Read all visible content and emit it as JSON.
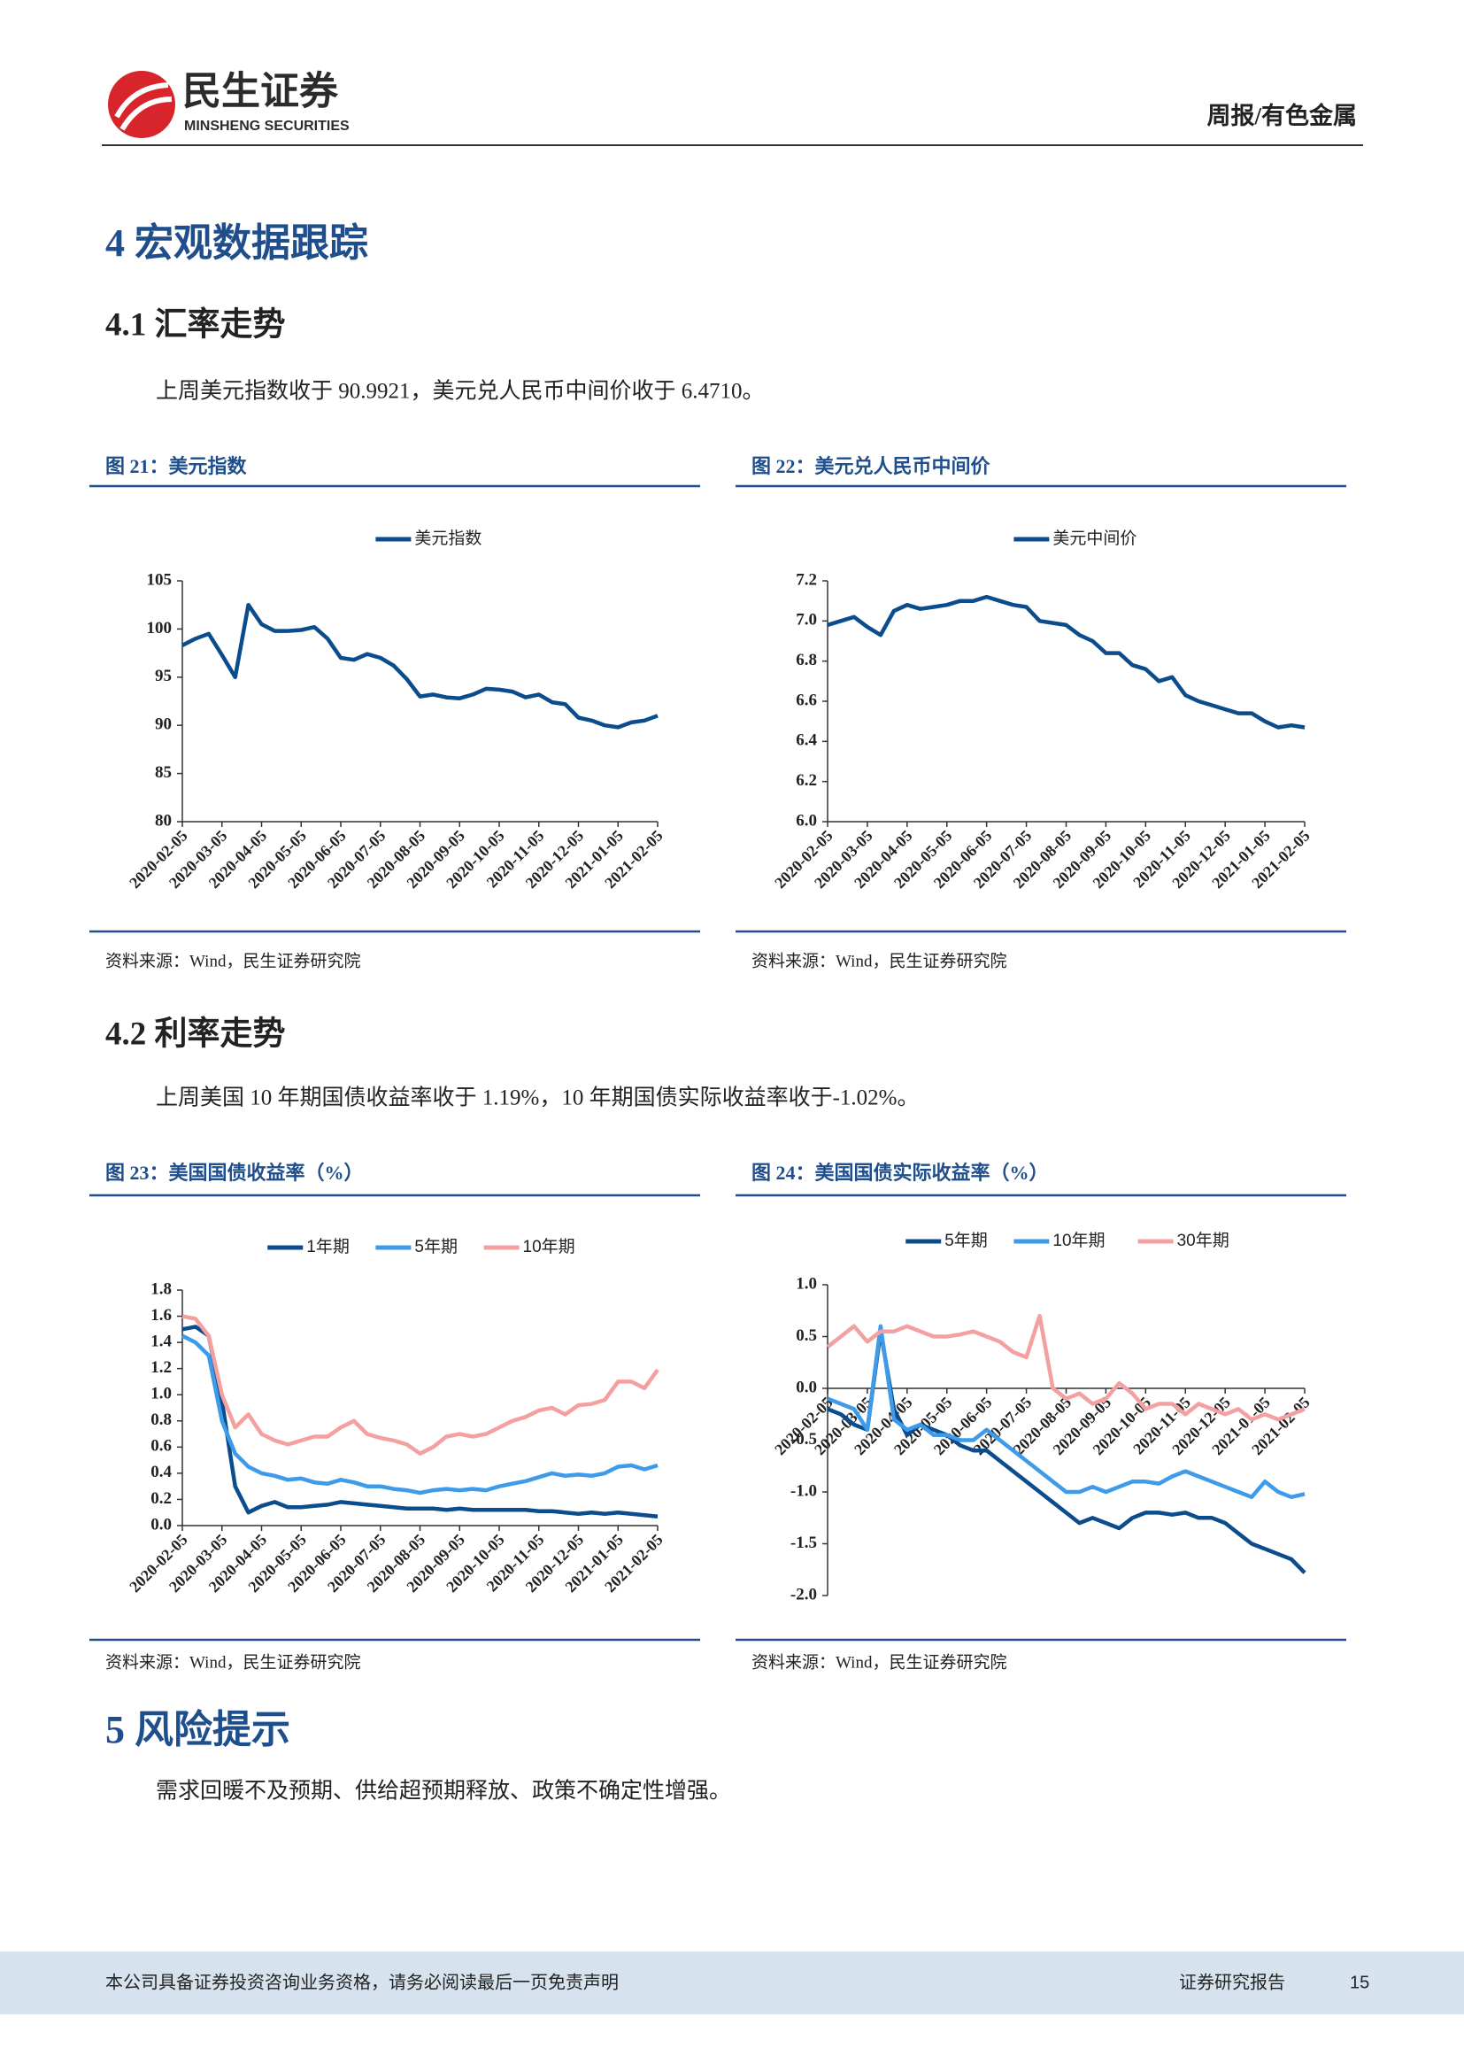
{
  "header": {
    "logo_cn": "民生证券",
    "logo_en": "MINSHENG SECURITIES",
    "report_type": "周报/有色金属"
  },
  "section4_title": "4 宏观数据跟踪",
  "sub41_title": "4.1 汇率走势",
  "sub41_text": "上周美元指数收于 90.9921，美元兑人民币中间价收于 6.4710。",
  "sub42_title": "4.2 利率走势",
  "sub42_text": "上周美国 10 年期国债收益率收于 1.19%，10 年期国债实际收益率收于-1.02%。",
  "section5_title": "5 风险提示",
  "section5_text": "需求回暖不及预期、供给超预期释放、政策不确定性增强。",
  "footer": {
    "disclaimer": "本公司具备证券投资咨询业务资格，请务必阅读最后一页免责声明",
    "label": "证券研究报告",
    "page": "15"
  },
  "chart_data": [
    {
      "type": "line",
      "title": "图 21：美元指数",
      "source": "资料来源：Wind，民生证券研究院",
      "categories": [
        "2020-02-05",
        null,
        null,
        "2020-03-05",
        null,
        null,
        "2020-04-05",
        null,
        null,
        "2020-05-05",
        null,
        null,
        "2020-06-05",
        null,
        null,
        "2020-07-05",
        null,
        null,
        "2020-08-05",
        null,
        null,
        "2020-09-05",
        null,
        null,
        "2020-10-05",
        null,
        null,
        "2020-11-05",
        null,
        null,
        "2020-12-05",
        null,
        null,
        "2021-01-05",
        null,
        null,
        "2021-02-05"
      ],
      "series": [
        {
          "name": "美元指数",
          "color": "#0b4c8c",
          "values": [
            98.3,
            99.0,
            99.5,
            97.3,
            95.0,
            102.5,
            100.5,
            99.8,
            99.8,
            99.9,
            100.2,
            99.0,
            97.0,
            96.8,
            97.4,
            97.0,
            96.2,
            94.8,
            93.0,
            93.2,
            92.9,
            92.8,
            93.2,
            93.8,
            93.7,
            93.5,
            92.9,
            93.2,
            92.4,
            92.2,
            90.8,
            90.5,
            90.0,
            89.8,
            90.3,
            90.5,
            91.0
          ]
        }
      ],
      "ylim": [
        80,
        105
      ],
      "yticks": [
        80,
        85,
        90,
        95,
        100,
        105
      ],
      "legend": "top"
    },
    {
      "type": "line",
      "title": "图 22：美元兑人民币中间价",
      "source": "资料来源：Wind，民生证券研究院",
      "categories": [
        "2020-02-05",
        null,
        null,
        "2020-03-05",
        null,
        null,
        "2020-04-05",
        null,
        null,
        "2020-05-05",
        null,
        null,
        "2020-06-05",
        null,
        null,
        "2020-07-05",
        null,
        null,
        "2020-08-05",
        null,
        null,
        "2020-09-05",
        null,
        null,
        "2020-10-05",
        null,
        null,
        "2020-11-05",
        null,
        null,
        "2020-12-05",
        null,
        null,
        "2021-01-05",
        null,
        null,
        "2021-02-05"
      ],
      "series": [
        {
          "name": "美元中间价",
          "color": "#0b4c8c",
          "values": [
            6.98,
            7.0,
            7.02,
            6.97,
            6.93,
            7.05,
            7.08,
            7.06,
            7.07,
            7.08,
            7.1,
            7.1,
            7.12,
            7.1,
            7.08,
            7.07,
            7.0,
            6.99,
            6.98,
            6.93,
            6.9,
            6.84,
            6.84,
            6.78,
            6.76,
            6.7,
            6.72,
            6.63,
            6.6,
            6.58,
            6.56,
            6.54,
            6.54,
            6.5,
            6.47,
            6.48,
            6.47
          ]
        }
      ],
      "ylim": [
        6.0,
        7.2
      ],
      "yticks": [
        {
          "value": 6,
          "label": "6.0"
        },
        6.2,
        6.4,
        6.6,
        6.8,
        {
          "value": 7,
          "label": "7.0"
        },
        7.2
      ],
      "legend": "top"
    },
    {
      "type": "line",
      "title": "图 23：美国国债收益率（%）",
      "source": "资料来源：Wind，民生证券研究院",
      "categories": [
        "2020-02-05",
        null,
        null,
        "2020-03-05",
        null,
        null,
        "2020-04-05",
        null,
        null,
        "2020-05-05",
        null,
        null,
        "2020-06-05",
        null,
        null,
        "2020-07-05",
        null,
        null,
        "2020-08-05",
        null,
        null,
        "2020-09-05",
        null,
        null,
        "2020-10-05",
        null,
        null,
        "2020-11-05",
        null,
        null,
        "2020-12-05",
        null,
        null,
        "2021-01-05",
        null,
        null,
        "2021-02-05"
      ],
      "series": [
        {
          "name": "1年期",
          "color": "#0b4c8c",
          "values": [
            1.5,
            1.52,
            1.45,
            0.95,
            0.3,
            0.1,
            0.15,
            0.18,
            0.14,
            0.14,
            0.15,
            0.16,
            0.18,
            0.17,
            0.16,
            0.15,
            0.14,
            0.13,
            0.13,
            0.13,
            0.12,
            0.13,
            0.12,
            0.12,
            0.12,
            0.12,
            0.12,
            0.11,
            0.11,
            0.1,
            0.09,
            0.1,
            0.09,
            0.1,
            0.09,
            0.08,
            0.07
          ]
        },
        {
          "name": "5年期",
          "color": "#3d9be9",
          "values": [
            1.45,
            1.4,
            1.3,
            0.8,
            0.55,
            0.45,
            0.4,
            0.38,
            0.35,
            0.36,
            0.33,
            0.32,
            0.35,
            0.33,
            0.3,
            0.3,
            0.28,
            0.27,
            0.25,
            0.27,
            0.28,
            0.27,
            0.28,
            0.27,
            0.3,
            0.32,
            0.34,
            0.37,
            0.4,
            0.38,
            0.39,
            0.38,
            0.4,
            0.45,
            0.46,
            0.43,
            0.46
          ]
        },
        {
          "name": "10年期",
          "color": "#f4a0a0",
          "values": [
            1.6,
            1.58,
            1.45,
            1.0,
            0.75,
            0.85,
            0.7,
            0.65,
            0.62,
            0.65,
            0.68,
            0.68,
            0.75,
            0.8,
            0.7,
            0.67,
            0.65,
            0.62,
            0.55,
            0.6,
            0.68,
            0.7,
            0.68,
            0.7,
            0.75,
            0.8,
            0.83,
            0.88,
            0.9,
            0.85,
            0.92,
            0.93,
            0.96,
            1.1,
            1.1,
            1.05,
            1.19
          ]
        }
      ],
      "ylim": [
        0,
        1.8
      ],
      "yticks": [
        {
          "value": 0,
          "label": "0.0"
        },
        0.2,
        0.4,
        0.6,
        0.8,
        {
          "value": 1,
          "label": "1.0"
        },
        1.2,
        1.4,
        1.6,
        1.8
      ],
      "legend": "top"
    },
    {
      "type": "line",
      "title": "图 24：美国国债实际收益率（%）",
      "source": "资料来源：Wind，民生证券研究院",
      "categories": [
        "2020-02-05",
        null,
        null,
        "2020-03-05",
        null,
        null,
        "2020-04-05",
        null,
        null,
        "2020-05-05",
        null,
        null,
        "2020-06-05",
        null,
        null,
        "2020-07-05",
        null,
        null,
        "2020-08-05",
        null,
        null,
        "2020-09-05",
        null,
        null,
        "2020-10-05",
        null,
        null,
        "2020-11-05",
        null,
        null,
        "2020-12-05",
        null,
        null,
        "2021-01-05",
        null,
        null,
        "2021-02-05"
      ],
      "series": [
        {
          "name": "5年期",
          "color": "#0b4c8c",
          "values": [
            -0.2,
            -0.25,
            -0.35,
            -0.4,
            0.55,
            -0.2,
            -0.45,
            -0.35,
            -0.4,
            -0.45,
            -0.55,
            -0.6,
            -0.6,
            -0.7,
            -0.8,
            -0.9,
            -1.0,
            -1.1,
            -1.2,
            -1.3,
            -1.25,
            -1.3,
            -1.35,
            -1.25,
            -1.2,
            -1.2,
            -1.22,
            -1.2,
            -1.25,
            -1.25,
            -1.3,
            -1.4,
            -1.5,
            -1.55,
            -1.6,
            -1.65,
            -1.78
          ]
        },
        {
          "name": "10年期",
          "color": "#3d9be9",
          "values": [
            -0.1,
            -0.15,
            -0.2,
            -0.4,
            0.6,
            -0.3,
            -0.4,
            -0.35,
            -0.45,
            -0.45,
            -0.5,
            -0.5,
            -0.4,
            -0.5,
            -0.6,
            -0.7,
            -0.8,
            -0.9,
            -1.0,
            -1.0,
            -0.95,
            -1.0,
            -0.95,
            -0.9,
            -0.9,
            -0.92,
            -0.85,
            -0.8,
            -0.85,
            -0.9,
            -0.95,
            -1.0,
            -1.05,
            -0.9,
            -1.0,
            -1.05,
            -1.02
          ]
        },
        {
          "name": "30年期",
          "color": "#f4a0a0",
          "values": [
            0.4,
            0.5,
            0.6,
            0.45,
            0.55,
            0.55,
            0.6,
            0.55,
            0.5,
            0.5,
            0.52,
            0.55,
            0.5,
            0.45,
            0.35,
            0.3,
            0.7,
            0.0,
            -0.1,
            -0.05,
            -0.15,
            -0.1,
            0.05,
            -0.05,
            -0.2,
            -0.15,
            -0.15,
            -0.25,
            -0.15,
            -0.2,
            -0.25,
            -0.2,
            -0.3,
            -0.25,
            -0.3,
            -0.25,
            -0.2
          ]
        }
      ],
      "ylim": [
        -2.0,
        1.0
      ],
      "yticks": [
        {
          "value": -2,
          "label": "-2.0"
        },
        -1.5,
        {
          "value": -1,
          "label": "-1.0"
        },
        -0.5,
        {
          "value": 0,
          "label": "0.0"
        },
        0.5,
        {
          "value": 1,
          "label": "1.0"
        }
      ],
      "legend": "top"
    }
  ]
}
